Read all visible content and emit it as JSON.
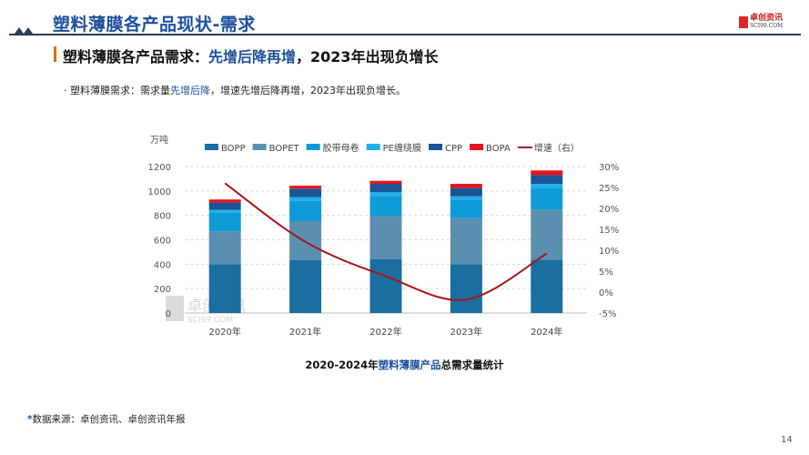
{
  "header": {
    "title": "塑料薄膜各产品现状-需求",
    "logo_text": "卓创资讯",
    "logo_sub": "SCI99.COM"
  },
  "subtitle": {
    "part1": "塑料薄膜各产品需求：",
    "part2": "先增后降再增",
    "part3": "，2023年出现负增长"
  },
  "bullet": {
    "part1": "· 塑料薄膜需求：需求量",
    "part2": "先增后降",
    "part3": "，增速先增后降再增，2023年出现负增长。"
  },
  "caption": {
    "part1": "2020-2024年",
    "part2": "塑料薄膜产品",
    "part3": "总需求量统计"
  },
  "source": {
    "star": "*",
    "text": "数据来源：卓创资讯、卓创资讯年报"
  },
  "page_number": "14",
  "watermark": {
    "text": "卓创资讯",
    "sub": "SCI99.COM"
  },
  "chart_data": {
    "type": "bar",
    "stacked": true,
    "ylabel": "万吨",
    "categories": [
      "2020年",
      "2021年",
      "2022年",
      "2023年",
      "2024年"
    ],
    "ylim": [
      0,
      1200
    ],
    "yticks": [
      0,
      200,
      400,
      600,
      800,
      1000,
      1200
    ],
    "y2lim": [
      -5,
      30
    ],
    "y2ticks": [
      "-5%",
      "0%",
      "5%",
      "10%",
      "15%",
      "20%",
      "25%",
      "30%"
    ],
    "grid": true,
    "legend": "top",
    "series": [
      {
        "name": "BOPP",
        "color": "#1a6ea0",
        "values": [
          400,
          435,
          442,
          400,
          437
        ]
      },
      {
        "name": "BOPET",
        "color": "#5b8fb0",
        "values": [
          270,
          318,
          355,
          378,
          410
        ]
      },
      {
        "name": "胶带母卷",
        "color": "#0f9ad8",
        "values": [
          150,
          166,
          163,
          151,
          179
        ]
      },
      {
        "name": "PE缠绕膜",
        "color": "#1fb0ec",
        "values": [
          25,
          30,
          29,
          27,
          32
        ]
      },
      {
        "name": "CPP",
        "color": "#1a5596",
        "values": [
          60,
          70,
          69,
          68,
          72
        ]
      },
      {
        "name": "BOPA",
        "color": "#e8141b",
        "values": [
          25,
          24,
          25,
          34,
          38
        ]
      }
    ],
    "line_series": {
      "name": "增速（右）",
      "color": "#a8161c",
      "axis": "right",
      "values": [
        26.0,
        12.0,
        3.8,
        -1.8,
        9.2
      ]
    }
  }
}
